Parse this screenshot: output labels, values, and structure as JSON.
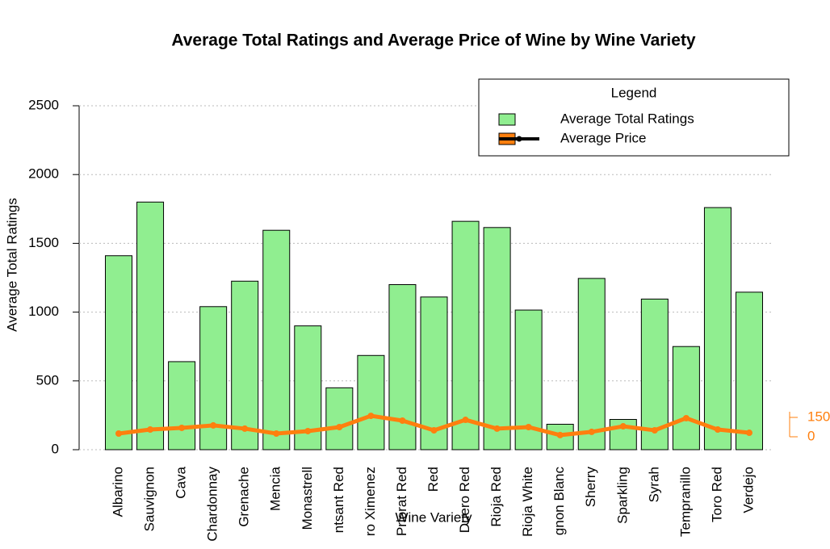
{
  "chart_data": {
    "type": "bar",
    "title": "Average Total Ratings and Average Price of Wine by Wine Variety",
    "x_label": "Wine Variety",
    "y_label": "Average Total Ratings",
    "categories": [
      "Albarino",
      "Sauvignon",
      "Cava",
      "Chardonnay",
      "Grenache",
      "Mencia",
      "Monastrell",
      "ntsant Red",
      "ro Ximenez",
      "Priorat Red",
      "Red",
      "Duero Red",
      "Rioja Red",
      "Rioja White",
      "gnon Blanc",
      "Sherry",
      "Sparkling",
      "Syrah",
      "Tempranillo",
      "Toro Red",
      "Verdejo"
    ],
    "series": [
      {
        "name": "Average Total Ratings",
        "type": "bar",
        "color": "#90ee90",
        "values": [
          1410,
          1800,
          640,
          1040,
          1225,
          1595,
          900,
          450,
          685,
          1200,
          1110,
          1660,
          1615,
          1015,
          185,
          1245,
          220,
          1095,
          750,
          1760,
          1145
        ]
      },
      {
        "name": "Average Price",
        "type": "line",
        "axis": "y2",
        "color": "#ff7f0e",
        "values": [
          25,
          56,
          69,
          88,
          63,
          25,
          44,
          75,
          162,
          125,
          50,
          131,
          63,
          75,
          13,
          38,
          81,
          50,
          144,
          56,
          31
        ]
      }
    ],
    "ylim": [
      0,
      2500
    ],
    "yticks": [
      0,
      500,
      1000,
      1500,
      2000,
      2500
    ],
    "y2lim": [
      -100,
      2562.5
    ],
    "y2ticks": [
      0,
      150
    ],
    "grid": true,
    "legend": {
      "title": "Legend",
      "position": "top-right"
    }
  }
}
